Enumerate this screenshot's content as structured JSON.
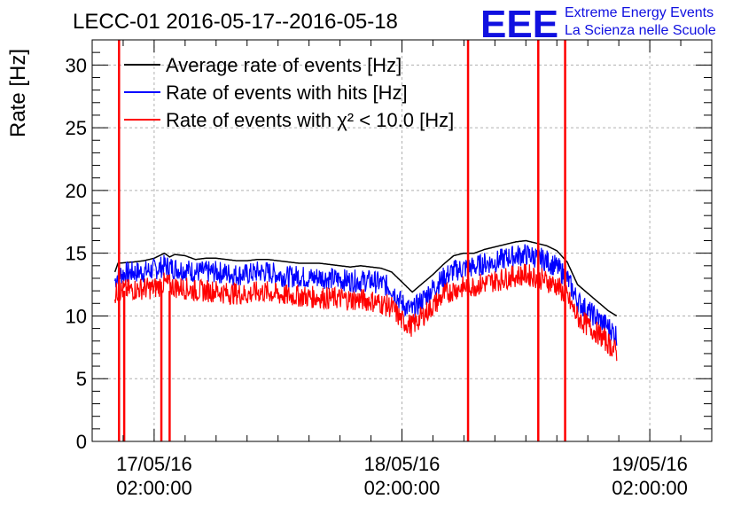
{
  "header": {
    "title": "LECC-01 2016-05-17--2016-05-18",
    "logo": {
      "mark": "EEE",
      "line1": "Extreme Energy Events",
      "line2": "La Scienza nelle Scuole"
    }
  },
  "colors": {
    "average": "#000000",
    "hits": "#0000ff",
    "chi2": "#ff0000",
    "grid": "#b0b0b0",
    "logo": "#1010e0"
  },
  "chart_data": {
    "type": "line",
    "title": "LECC-01 2016-05-17--2016-05-18",
    "xlabel": "",
    "ylabel": "Rate [Hz]",
    "ylim": [
      0,
      32
    ],
    "xlim_hours": [
      -6,
      54
    ],
    "grid": true,
    "legend_position": "top-left",
    "y_ticks": [
      "0",
      "5",
      "10",
      "15",
      "20",
      "25",
      "30"
    ],
    "x_ticks": [
      {
        "date": "17/05/16",
        "time": "02:00:00",
        "hour": 0
      },
      {
        "date": "18/05/16",
        "time": "02:00:00",
        "hour": 24
      },
      {
        "date": "19/05/16",
        "time": "02:00:00",
        "hour": 48
      }
    ],
    "x_unit": "hours after 17/05/16 02:00:00",
    "series": [
      {
        "name": "Average rate of events [Hz]",
        "key": "average",
        "points": [
          [
            -3.8,
            13.5
          ],
          [
            -3.5,
            14.2
          ],
          [
            -2,
            14.3
          ],
          [
            -1,
            14.4
          ],
          [
            0,
            14.6
          ],
          [
            1,
            15.0
          ],
          [
            1.5,
            14.7
          ],
          [
            2,
            14.9
          ],
          [
            3,
            14.8
          ],
          [
            4,
            14.5
          ],
          [
            5,
            14.6
          ],
          [
            6,
            14.6
          ],
          [
            7,
            14.5
          ],
          [
            8,
            14.4
          ],
          [
            9,
            14.4
          ],
          [
            10,
            14.5
          ],
          [
            11,
            14.5
          ],
          [
            12,
            14.4
          ],
          [
            13,
            14.3
          ],
          [
            14,
            14.2
          ],
          [
            15,
            14.2
          ],
          [
            16,
            14.2
          ],
          [
            17,
            14.1
          ],
          [
            18,
            14.0
          ],
          [
            19,
            13.9
          ],
          [
            20,
            14.0
          ],
          [
            21,
            13.9
          ],
          [
            22,
            13.8
          ],
          [
            23,
            13.5
          ],
          [
            24,
            12.7
          ],
          [
            25,
            11.9
          ],
          [
            26,
            12.6
          ],
          [
            27,
            13.3
          ],
          [
            28,
            14.1
          ],
          [
            29,
            14.8
          ],
          [
            30,
            15.0
          ],
          [
            31,
            15.0
          ],
          [
            32,
            15.3
          ],
          [
            33,
            15.5
          ],
          [
            34,
            15.7
          ],
          [
            35,
            15.9
          ],
          [
            36,
            16.0
          ],
          [
            37,
            15.8
          ],
          [
            38,
            15.6
          ],
          [
            39,
            15.2
          ],
          [
            40,
            14.3
          ],
          [
            41,
            12.5
          ],
          [
            42,
            11.8
          ],
          [
            43,
            11.1
          ],
          [
            44,
            10.4
          ],
          [
            44.8,
            10.0
          ]
        ]
      },
      {
        "name": "Rate of events with hits [Hz]",
        "key": "hits",
        "points": [
          [
            -3.8,
            12.8
          ],
          [
            -3.5,
            13.3
          ],
          [
            -2,
            13.5
          ],
          [
            -1,
            13.5
          ],
          [
            0,
            13.7
          ],
          [
            1,
            14.0
          ],
          [
            2,
            13.8
          ],
          [
            3,
            13.7
          ],
          [
            4,
            13.5
          ],
          [
            5,
            13.5
          ],
          [
            6,
            13.5
          ],
          [
            7,
            13.4
          ],
          [
            8,
            13.3
          ],
          [
            9,
            13.3
          ],
          [
            10,
            13.5
          ],
          [
            11,
            13.5
          ],
          [
            12,
            13.3
          ],
          [
            13,
            13.1
          ],
          [
            14,
            13.2
          ],
          [
            15,
            13.0
          ],
          [
            16,
            13.1
          ],
          [
            17,
            13.0
          ],
          [
            18,
            12.9
          ],
          [
            19,
            12.8
          ],
          [
            20,
            12.8
          ],
          [
            21,
            12.8
          ],
          [
            22,
            12.6
          ],
          [
            23,
            12.2
          ],
          [
            24,
            11.0
          ],
          [
            25,
            10.4
          ],
          [
            26,
            11.3
          ],
          [
            27,
            12.2
          ],
          [
            28,
            13.0
          ],
          [
            29,
            13.6
          ],
          [
            30,
            13.8
          ],
          [
            31,
            13.9
          ],
          [
            32,
            14.2
          ],
          [
            33,
            14.3
          ],
          [
            34,
            14.6
          ],
          [
            35,
            14.8
          ],
          [
            36,
            14.9
          ],
          [
            37,
            14.7
          ],
          [
            38,
            14.4
          ],
          [
            39,
            13.9
          ],
          [
            40,
            13.0
          ],
          [
            41,
            11.2
          ],
          [
            42,
            10.4
          ],
          [
            43,
            9.8
          ],
          [
            44,
            9.1
          ],
          [
            44.8,
            8.5
          ]
        ]
      },
      {
        "name": "Rate of events with χ² < 10.0 [Hz]",
        "key": "chi2",
        "points": [
          [
            -3.8,
            11.6
          ],
          [
            -3.5,
            12.0
          ],
          [
            -2,
            12.1
          ],
          [
            -1,
            12.2
          ],
          [
            0,
            12.2
          ],
          [
            1,
            12.6
          ],
          [
            2,
            12.3
          ],
          [
            3,
            12.2
          ],
          [
            4,
            12.0
          ],
          [
            5,
            12.0
          ],
          [
            6,
            12.0
          ],
          [
            7,
            11.8
          ],
          [
            8,
            11.8
          ],
          [
            9,
            11.7
          ],
          [
            10,
            11.9
          ],
          [
            11,
            11.9
          ],
          [
            12,
            11.7
          ],
          [
            13,
            11.6
          ],
          [
            14,
            11.6
          ],
          [
            15,
            11.5
          ],
          [
            16,
            11.5
          ],
          [
            17,
            11.4
          ],
          [
            18,
            11.4
          ],
          [
            19,
            11.3
          ],
          [
            20,
            11.3
          ],
          [
            21,
            11.2
          ],
          [
            22,
            11.0
          ],
          [
            23,
            10.7
          ],
          [
            24,
            9.6
          ],
          [
            25,
            9.2
          ],
          [
            26,
            10.0
          ],
          [
            27,
            10.8
          ],
          [
            28,
            11.6
          ],
          [
            29,
            12.1
          ],
          [
            30,
            12.3
          ],
          [
            31,
            12.4
          ],
          [
            32,
            12.6
          ],
          [
            33,
            12.8
          ],
          [
            34,
            13.0
          ],
          [
            35,
            13.2
          ],
          [
            36,
            13.3
          ],
          [
            37,
            13.1
          ],
          [
            38,
            12.8
          ],
          [
            39,
            12.4
          ],
          [
            40,
            11.5
          ],
          [
            41,
            9.9
          ],
          [
            42,
            9.2
          ],
          [
            43,
            8.6
          ],
          [
            44,
            7.8
          ],
          [
            44.8,
            7.1
          ]
        ],
        "spikes": [
          {
            "hour": -3.4,
            "min": 0,
            "max": 32
          },
          {
            "hour": -2.9,
            "min": 0,
            "max": 12
          },
          {
            "hour": 0.7,
            "min": 0,
            "max": 12
          },
          {
            "hour": 1.5,
            "min": 0,
            "max": 12
          },
          {
            "hour": 30.4,
            "min": 0,
            "max": 32
          },
          {
            "hour": 37.2,
            "min": 0,
            "max": 32
          },
          {
            "hour": 39.8,
            "min": 0,
            "max": 32
          }
        ]
      }
    ]
  }
}
